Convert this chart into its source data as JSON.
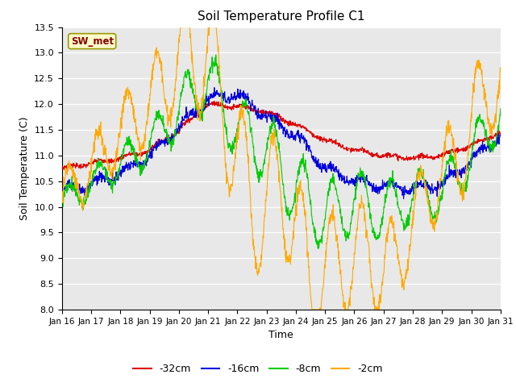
{
  "title": "Soil Temperature Profile C1",
  "xlabel": "Time",
  "ylabel": "Soil Temperature (C)",
  "ylim": [
    8.0,
    13.5
  ],
  "yticks": [
    8.0,
    8.5,
    9.0,
    9.5,
    10.0,
    10.5,
    11.0,
    11.5,
    12.0,
    12.5,
    13.0,
    13.5
  ],
  "x_labels": [
    "Jan 16",
    "Jan 17",
    "Jan 18",
    "Jan 19",
    "Jan 20",
    "Jan 21",
    "Jan 22",
    "Jan 23",
    "Jan 24",
    "Jan 25",
    "Jan 26",
    "Jan 27",
    "Jan 28",
    "Jan 29",
    "Jan 30",
    "Jan 31"
  ],
  "colors": {
    "-32cm": "#dd0000",
    "-16cm": "#0000dd",
    "-8cm": "#00cc00",
    "-2cm": "#ffaa00"
  },
  "legend_label": "SW_met",
  "fig_bg": "#ffffff",
  "plot_bg": "#e8e8e8"
}
